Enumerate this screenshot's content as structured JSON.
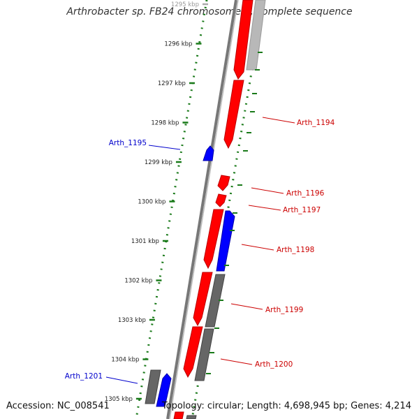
{
  "title": "Arthrobacter sp. FB24 chromosome 1, complete sequence",
  "footer": {
    "accession": "Accession: NC_008541",
    "summary": "Topology: circular; Length: 4,698,945 bp; Genes: 4,214"
  },
  "colors": {
    "forward_gene": "#ff0000",
    "reverse_gene": "#0000ff",
    "other_feature": "#666666",
    "ruler_ticks": "#1a7a1a",
    "backbone": "#777777",
    "label_red": "#cc0000",
    "label_blue": "#0000cc"
  },
  "ruler": {
    "unit": "kbp",
    "ticks": [
      {
        "label": "1295 kbp",
        "kbp": 1295
      },
      {
        "label": "1296 kbp",
        "kbp": 1296
      },
      {
        "label": "1297 kbp",
        "kbp": 1297
      },
      {
        "label": "1298 kbp",
        "kbp": 1298
      },
      {
        "label": "1299 kbp",
        "kbp": 1299
      },
      {
        "label": "1300 kbp",
        "kbp": 1300
      },
      {
        "label": "1301 kbp",
        "kbp": 1301
      },
      {
        "label": "1302 kbp",
        "kbp": 1302
      },
      {
        "label": "1303 kbp",
        "kbp": 1303
      },
      {
        "label": "1304 kbp",
        "kbp": 1304
      },
      {
        "label": "1305 kbp",
        "kbp": 1305
      }
    ]
  },
  "gene_labels": [
    {
      "name": "Arth_1194",
      "side": "right",
      "color": "red"
    },
    {
      "name": "Arth_1195",
      "side": "left",
      "color": "blue"
    },
    {
      "name": "Arth_1196",
      "side": "right",
      "color": "red"
    },
    {
      "name": "Arth_1197",
      "side": "right",
      "color": "red"
    },
    {
      "name": "Arth_1198",
      "side": "right",
      "color": "red"
    },
    {
      "name": "Arth_1199",
      "side": "right",
      "color": "red"
    },
    {
      "name": "Arth_1200",
      "side": "right",
      "color": "red"
    },
    {
      "name": "Arth_1201",
      "side": "left",
      "color": "blue"
    }
  ]
}
